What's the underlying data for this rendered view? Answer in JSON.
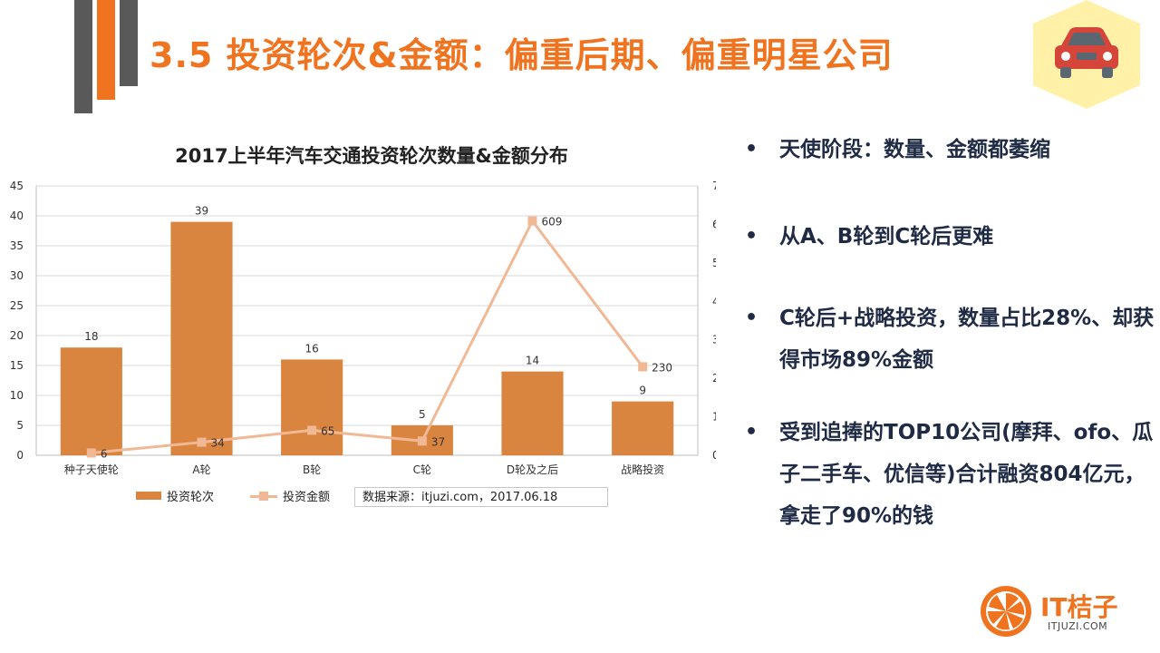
{
  "slide": {
    "title": "3.5  投资轮次&金额：偏重后期、偏重明星公司"
  },
  "badge": {
    "icon": "car-icon",
    "colors": {
      "hexagon": "#fff2a8",
      "car": "#d6453a"
    }
  },
  "bullets": [
    "天使阶段：数量、金额都萎缩",
    "从A、B轮到C轮后更难",
    "C轮后+战略投资，数量占比28%、却获得市场89%金额",
    "受到追捧的TOP10公司(摩拜、ofo、瓜子二手车、优信等)合计融资804亿元，拿走了90%的钱"
  ],
  "logo": {
    "text": "IT桔子",
    "sub": "ITJUZI.COM",
    "color": "#f0731f"
  },
  "chart_data": {
    "type": "bar",
    "title": "2017上半年汽车交通投资轮次数量&金额分布",
    "categories": [
      "种子天使轮",
      "A轮",
      "B轮",
      "C轮",
      "D轮及之后",
      "战略投资"
    ],
    "series": [
      {
        "name": "投资轮次",
        "type": "bar",
        "axis": "left",
        "values": [
          18,
          39,
          16,
          5,
          14,
          9
        ],
        "color": "#d9853f"
      },
      {
        "name": "投资金额",
        "type": "line",
        "axis": "right",
        "values": [
          6,
          34,
          65,
          37,
          609,
          230
        ],
        "color": "#f1b896"
      }
    ],
    "y_left": {
      "min": 0,
      "max": 45,
      "step": 5
    },
    "y_right": {
      "min": 0,
      "max": 700,
      "step": 100
    },
    "grid": true,
    "legend": "bottom",
    "source": "数据来源：itjuzi.com，2017.06.18"
  }
}
